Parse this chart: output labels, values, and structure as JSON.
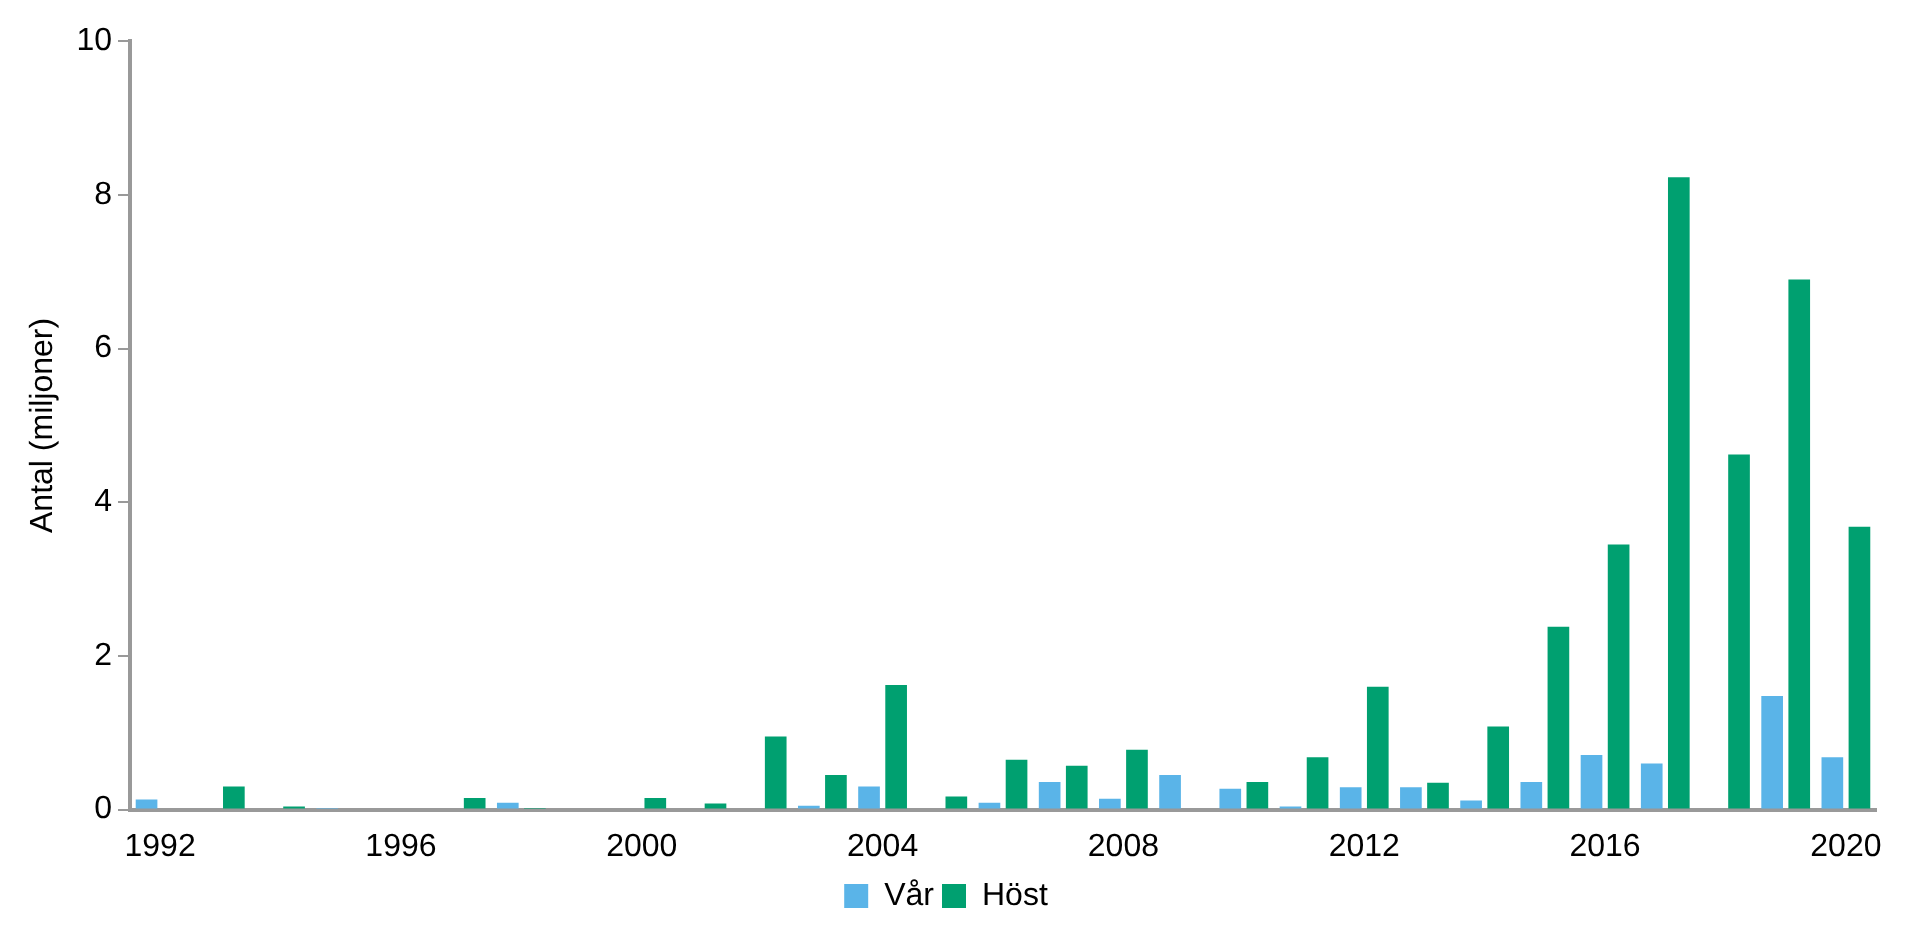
{
  "chart_data": {
    "type": "bar",
    "ylabel": "Antal (miljoner)",
    "categories": [
      "1992",
      null,
      null,
      null,
      "1996",
      null,
      null,
      null,
      "2000",
      null,
      null,
      null,
      "2004",
      null,
      null,
      null,
      "2008",
      null,
      null,
      null,
      "2012",
      null,
      null,
      null,
      "2016",
      null,
      null,
      null,
      "2020"
    ],
    "series": [
      {
        "name": "Vår",
        "color": "#5ab4e8",
        "values": [
          0.13,
          0,
          0,
          0.02,
          0,
          0,
          0.09,
          0,
          0,
          0,
          0,
          0.05,
          0.3,
          0,
          0.09,
          0.36,
          0.14,
          0.45,
          0.27,
          0.04,
          0.29,
          0.29,
          0.12,
          0.36,
          0.71,
          0.6,
          0,
          1.48,
          0.68
        ]
      },
      {
        "name": "Höst",
        "color": "#00a070",
        "values": [
          0,
          0.3,
          0.04,
          null,
          0,
          0.15,
          0.02,
          0,
          0.15,
          0.08,
          0.95,
          0.45,
          1.62,
          0.17,
          0.65,
          0.57,
          0.78,
          0,
          0.36,
          0.68,
          1.6,
          0.35,
          1.08,
          2.38,
          3.45,
          8.23,
          4.62,
          6.9,
          3.68
        ]
      }
    ],
    "ylim": [
      0,
      10
    ],
    "yticks": [
      0,
      2,
      4,
      6,
      8,
      10
    ],
    "grid": false,
    "legend": "bottom"
  }
}
